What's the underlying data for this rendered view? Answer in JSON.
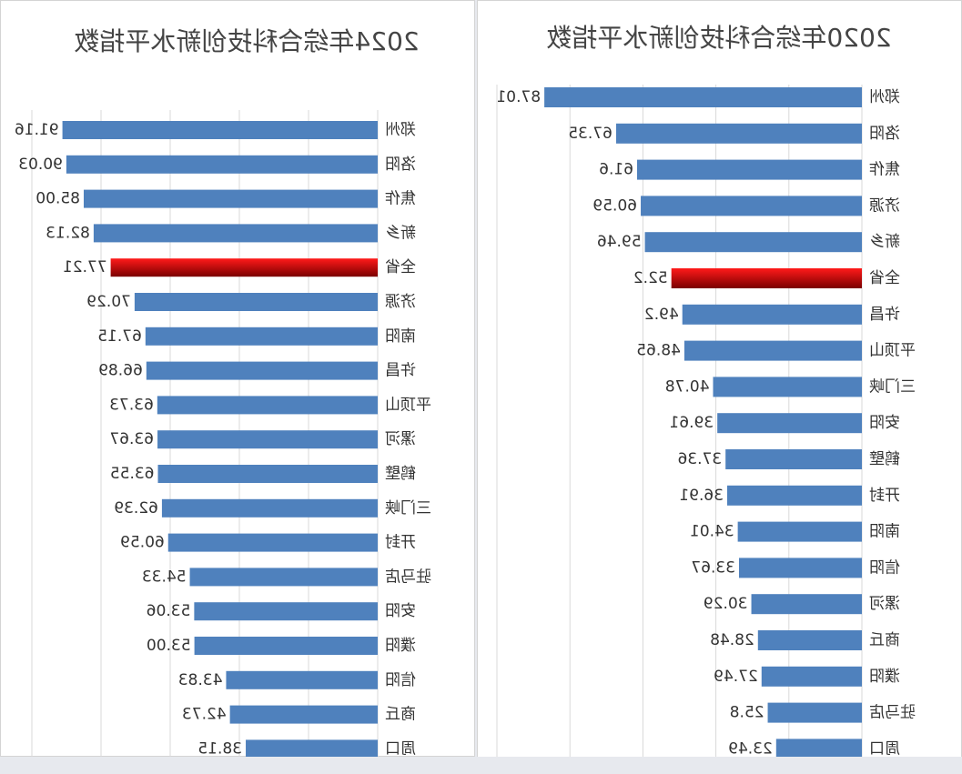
{
  "chart_data": [
    {
      "type": "bar",
      "orientation": "horizontal",
      "mirrored": true,
      "title": "2024年综合科技创新水平指数",
      "categories": [
        "郑州",
        "洛阳",
        "焦作",
        "新乡",
        "全省",
        "济源",
        "南阳",
        "许昌",
        "平顶山",
        "漯河",
        "鹤壁",
        "三门峡",
        "开封",
        "驻马店",
        "安阳",
        "濮阳",
        "信阳",
        "商丘",
        "周口"
      ],
      "values": [
        91.16,
        90.03,
        85.0,
        82.13,
        77.21,
        70.29,
        67.15,
        66.89,
        63.73,
        63.67,
        63.55,
        62.39,
        60.59,
        54.33,
        53.06,
        53.0,
        43.83,
        42.73,
        38.15
      ],
      "value_labels": [
        "91.16",
        "90.03",
        "85.00",
        "82.13",
        "77.21",
        "70.29",
        "67.15",
        "66.89",
        "63.73",
        "63.67",
        "63.55",
        "62.39",
        "60.59",
        "54.33",
        "53.06",
        "53.00",
        "43.83",
        "42.73",
        "38.15"
      ],
      "highlight_category": "全省",
      "xlim": [
        0,
        100
      ],
      "grid": true,
      "legend": "none"
    },
    {
      "type": "bar",
      "orientation": "horizontal",
      "mirrored": true,
      "title": "2020年综合科技创新水平指数",
      "categories": [
        "郑州",
        "洛阳",
        "焦作",
        "济源",
        "新乡",
        "全省",
        "许昌",
        "平顶山",
        "三门峡",
        "安阳",
        "鹤壁",
        "开封",
        "南阳",
        "信阳",
        "漯河",
        "商丘",
        "濮阳",
        "驻马店",
        "周口"
      ],
      "values": [
        87.01,
        67.35,
        61.6,
        60.59,
        59.46,
        52.2,
        49.2,
        48.65,
        40.78,
        39.61,
        37.36,
        36.91,
        34.01,
        33.67,
        30.29,
        28.48,
        27.49,
        25.8,
        23.49
      ],
      "value_labels": [
        "87.01",
        "67.35",
        "61.6",
        "60.59",
        "59.46",
        "52.2",
        "49.2",
        "48.65",
        "40.78",
        "39.61",
        "37.36",
        "36.91",
        "34.01",
        "33.67",
        "30.29",
        "28.48",
        "27.49",
        "25.8",
        "23.49"
      ],
      "highlight_category": "全省",
      "xlim": [
        0,
        100
      ],
      "grid": true,
      "legend": "none"
    }
  ],
  "colors": {
    "bar": "#4f81bd",
    "highlight_top": "#ff1a1a",
    "highlight_bottom": "#7a0000",
    "grid": "#d9d9d9",
    "text": "#333333"
  }
}
